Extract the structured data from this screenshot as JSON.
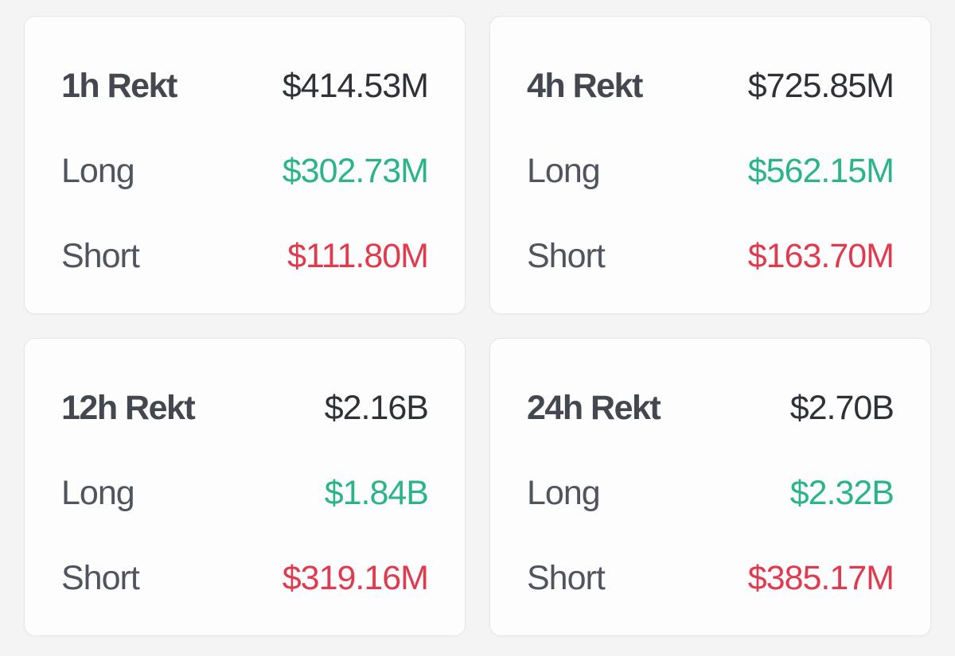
{
  "colors": {
    "pageBg": "#f4f4f5",
    "cardBg": "#fdfdfd",
    "cardBorder": "#e7e7ea",
    "titleText": "#43474f",
    "valueText": "#2e3138",
    "labelText": "#4f545e",
    "green": "#2bb489",
    "red": "#e03a4e"
  },
  "cards": [
    {
      "title": "1h Rekt",
      "total": "$414.53M",
      "rows": [
        {
          "label": "Long",
          "value": "$302.73M"
        },
        {
          "label": "Short",
          "value": "$111.80M"
        }
      ]
    },
    {
      "title": "4h Rekt",
      "total": "$725.85M",
      "rows": [
        {
          "label": "Long",
          "value": "$562.15M"
        },
        {
          "label": "Short",
          "value": "$163.70M"
        }
      ]
    },
    {
      "title": "12h Rekt",
      "total": "$2.16B",
      "rows": [
        {
          "label": "Long",
          "value": "$1.84B"
        },
        {
          "label": "Short",
          "value": "$319.16M"
        }
      ]
    },
    {
      "title": "24h Rekt",
      "total": "$2.70B",
      "rows": [
        {
          "label": "Long",
          "value": "$2.32B"
        },
        {
          "label": "Short",
          "value": "$385.17M"
        }
      ]
    }
  ]
}
